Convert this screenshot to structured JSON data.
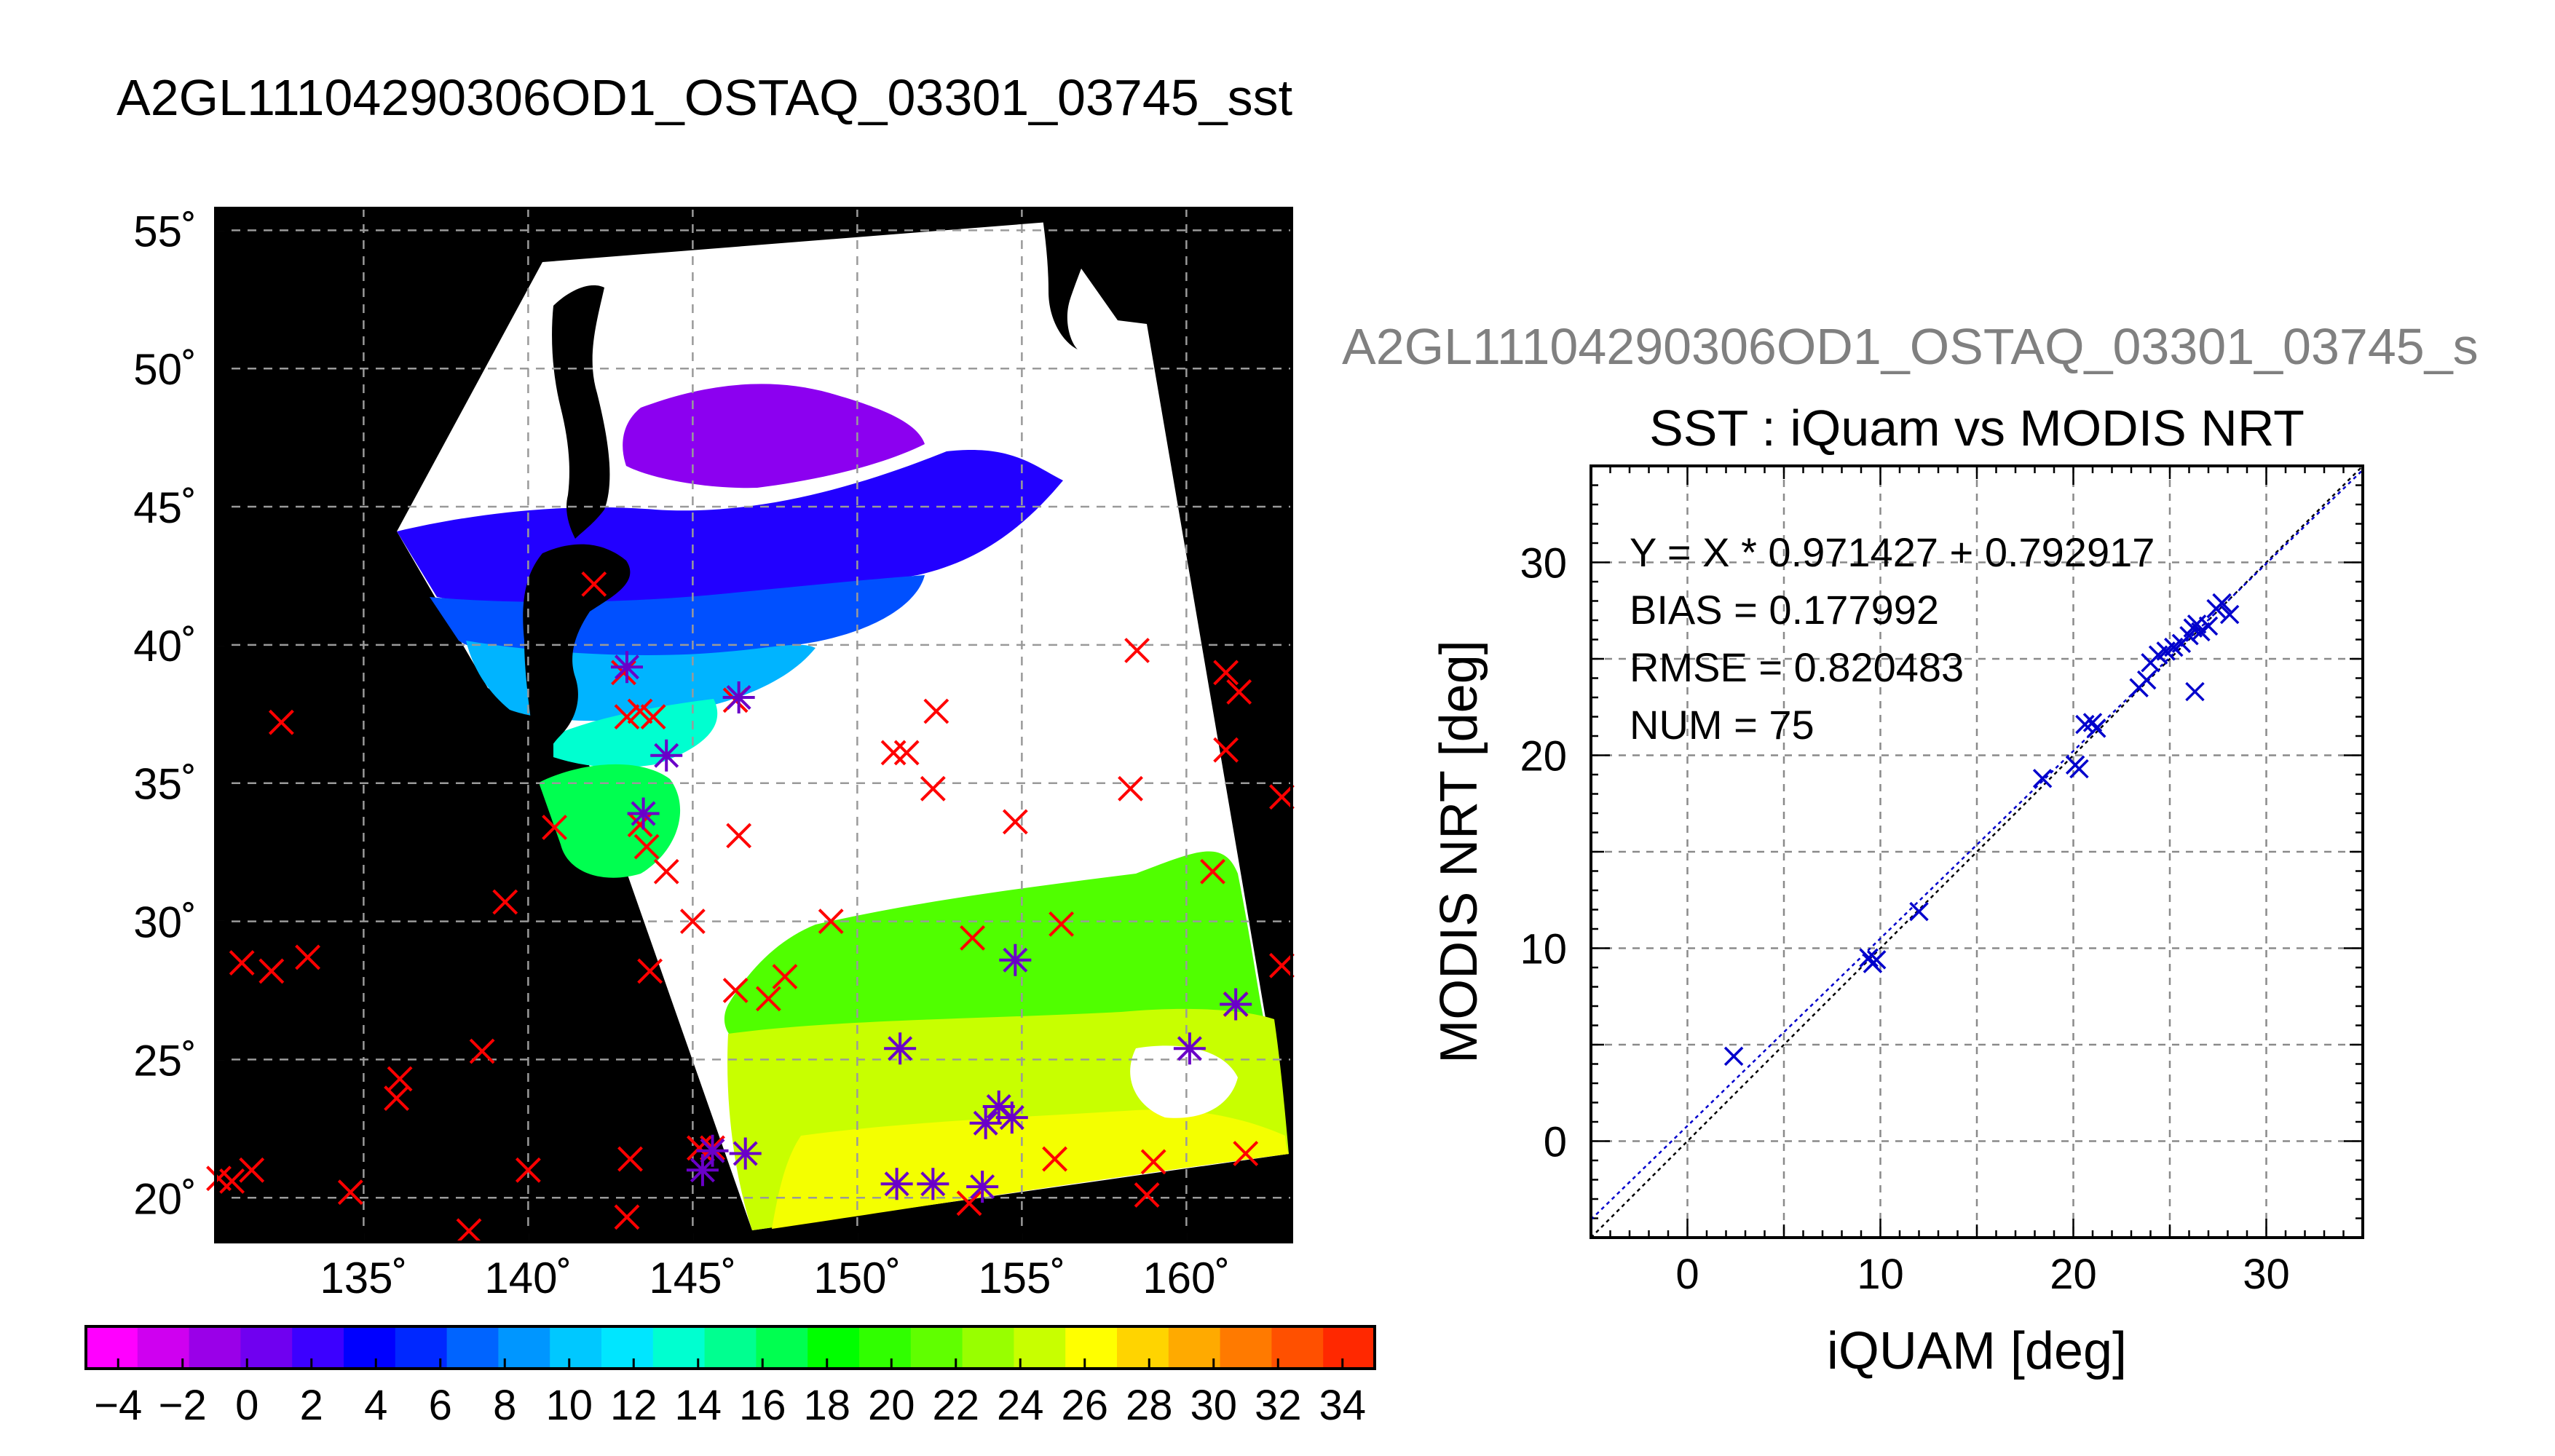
{
  "chart_data": [
    {
      "type": "map",
      "title": "A2GL11104290306OD1_OSTAQ_03301_03745_sst",
      "lon_range": [
        130.5,
        163.2
      ],
      "lat_range": [
        18.4,
        55.8
      ],
      "lon_ticks": [
        135,
        140,
        145,
        150,
        155,
        160
      ],
      "lat_ticks": [
        20,
        25,
        30,
        35,
        40,
        45,
        50,
        55
      ],
      "lon_tick_labels": [
        "135˚",
        "140˚",
        "145˚",
        "150˚",
        "155˚",
        "160˚"
      ],
      "lat_tick_labels": [
        "20˚",
        "25˚",
        "30˚",
        "35˚",
        "40˚",
        "45˚",
        "50˚",
        "55˚"
      ],
      "grid": true,
      "colorbar": {
        "min": -5,
        "max": 35,
        "tick_values": [
          -4,
          -2,
          0,
          2,
          4,
          6,
          8,
          10,
          12,
          14,
          16,
          18,
          20,
          22,
          24,
          26,
          28,
          30,
          32,
          34
        ],
        "tick_labels": [
          "−4",
          "−2",
          "0",
          "2",
          "4",
          "6",
          "8",
          "10",
          "12",
          "14",
          "16",
          "18",
          "20",
          "22",
          "24",
          "26",
          "28",
          "30",
          "32",
          "34"
        ],
        "colors": [
          "#ff00ff",
          "#cf00f0",
          "#9a00e8",
          "#7000f0",
          "#3c00ff",
          "#0000ff",
          "#0028ff",
          "#0064ff",
          "#0096ff",
          "#00c8ff",
          "#00e6ff",
          "#00ffd0",
          "#00ff90",
          "#00ff50",
          "#00ff00",
          "#30ff00",
          "#60ff00",
          "#98ff00",
          "#c8ff00",
          "#ffff00",
          "#ffd400",
          "#ffaa00",
          "#ff7a00",
          "#ff5000",
          "#ff2800"
        ]
      },
      "series": [
        {
          "marker": "×",
          "color": "#ff0000",
          "points": [
            [
              132.5,
              37.2
            ],
            [
              131.3,
              28.5
            ],
            [
              132.2,
              28.2
            ],
            [
              133.3,
              28.7
            ],
            [
              130.6,
              20.7
            ],
            [
              131.0,
              20.6
            ],
            [
              131.6,
              21.0
            ],
            [
              134.6,
              20.2
            ],
            [
              136.1,
              24.3
            ],
            [
              136.0,
              23.6
            ],
            [
              138.6,
              25.3
            ],
            [
              139.3,
              30.7
            ],
            [
              138.2,
              18.8
            ],
            [
              140.0,
              21.0
            ],
            [
              140.8,
              33.4
            ],
            [
              142.0,
              42.2
            ],
            [
              142.9,
              39.0
            ],
            [
              143.0,
              37.4
            ],
            [
              143.4,
              37.6
            ],
            [
              143.8,
              37.4
            ],
            [
              143.4,
              33.5
            ],
            [
              143.6,
              32.7
            ],
            [
              144.2,
              31.8
            ],
            [
              143.7,
              28.2
            ],
            [
              145.0,
              30.0
            ],
            [
              146.3,
              27.5
            ],
            [
              147.3,
              27.2
            ],
            [
              147.8,
              28.0
            ],
            [
              146.4,
              33.1
            ],
            [
              146.3,
              38.0
            ],
            [
              149.2,
              30.0
            ],
            [
              151.1,
              36.1
            ],
            [
              151.5,
              36.1
            ],
            [
              152.4,
              37.6
            ],
            [
              152.3,
              34.8
            ],
            [
              154.8,
              33.6
            ],
            [
              153.5,
              29.4
            ],
            [
              156.2,
              29.9
            ],
            [
              158.3,
              34.8
            ],
            [
              158.5,
              39.8
            ],
            [
              161.2,
              39.0
            ],
            [
              161.6,
              38.3
            ],
            [
              161.2,
              36.2
            ],
            [
              160.8,
              31.8
            ],
            [
              162.9,
              34.5
            ],
            [
              162.9,
              28.4
            ],
            [
              161.5,
              27.0
            ],
            [
              159.0,
              21.3
            ],
            [
              158.8,
              20.1
            ],
            [
              161.8,
              21.6
            ],
            [
              156.0,
              21.4
            ],
            [
              153.4,
              19.8
            ],
            [
              143.1,
              21.4
            ],
            [
              143.0,
              19.3
            ],
            [
              145.2,
              21.8
            ],
            [
              145.6,
              21.8
            ]
          ]
        },
        {
          "marker": "✳",
          "color": "#6a00c8",
          "points": [
            [
              143.0,
              39.2
            ],
            [
              144.2,
              36.0
            ],
            [
              143.5,
              33.9
            ],
            [
              146.4,
              38.1
            ],
            [
              145.3,
              21.0
            ],
            [
              145.6,
              21.7
            ],
            [
              146.6,
              21.6
            ],
            [
              151.3,
              25.4
            ],
            [
              151.2,
              20.5
            ],
            [
              152.3,
              20.5
            ],
            [
              153.8,
              20.4
            ],
            [
              153.9,
              22.7
            ],
            [
              154.3,
              23.3
            ],
            [
              154.7,
              22.9
            ],
            [
              154.8,
              28.6
            ],
            [
              160.1,
              25.4
            ],
            [
              161.5,
              27.0
            ]
          ]
        }
      ]
    },
    {
      "type": "scatter",
      "header": "A2GL11104290306OD1_OSTAQ_03301_03745_s",
      "title": "SST : iQuam vs MODIS NRT",
      "xlabel": "iQUAM [deg]",
      "ylabel": "MODIS NRT [deg]",
      "xlim": [
        -5,
        35
      ],
      "ylim": [
        -5,
        35
      ],
      "x_ticks": [
        0,
        10,
        20,
        30
      ],
      "y_ticks": [
        0,
        10,
        20,
        30
      ],
      "grid": true,
      "annotations": [
        "Y = X * 0.971427 + 0.792917",
        "BIAS = 0.177992",
        "RMSE = 0.820483",
        "NUM = 75"
      ],
      "fit": {
        "slope": 0.971427,
        "intercept": 0.792917
      },
      "marker": "×",
      "color": "#0000cc",
      "points": [
        [
          2.4,
          4.4
        ],
        [
          9.4,
          9.5
        ],
        [
          9.6,
          9.2
        ],
        [
          9.8,
          9.4
        ],
        [
          12.0,
          11.9
        ],
        [
          18.4,
          18.8
        ],
        [
          20.1,
          19.5
        ],
        [
          20.3,
          19.3
        ],
        [
          20.6,
          21.6
        ],
        [
          21.0,
          21.7
        ],
        [
          21.2,
          21.4
        ],
        [
          23.4,
          23.5
        ],
        [
          23.8,
          23.9
        ],
        [
          24.0,
          24.8
        ],
        [
          24.4,
          25.2
        ],
        [
          24.8,
          25.4
        ],
        [
          25.2,
          25.6
        ],
        [
          25.6,
          25.8
        ],
        [
          26.0,
          26.2
        ],
        [
          26.2,
          26.6
        ],
        [
          26.4,
          26.8
        ],
        [
          26.6,
          26.4
        ],
        [
          27.0,
          26.7
        ],
        [
          27.4,
          27.6
        ],
        [
          27.7,
          27.9
        ],
        [
          28.1,
          27.3
        ],
        [
          26.3,
          23.3
        ]
      ]
    }
  ]
}
